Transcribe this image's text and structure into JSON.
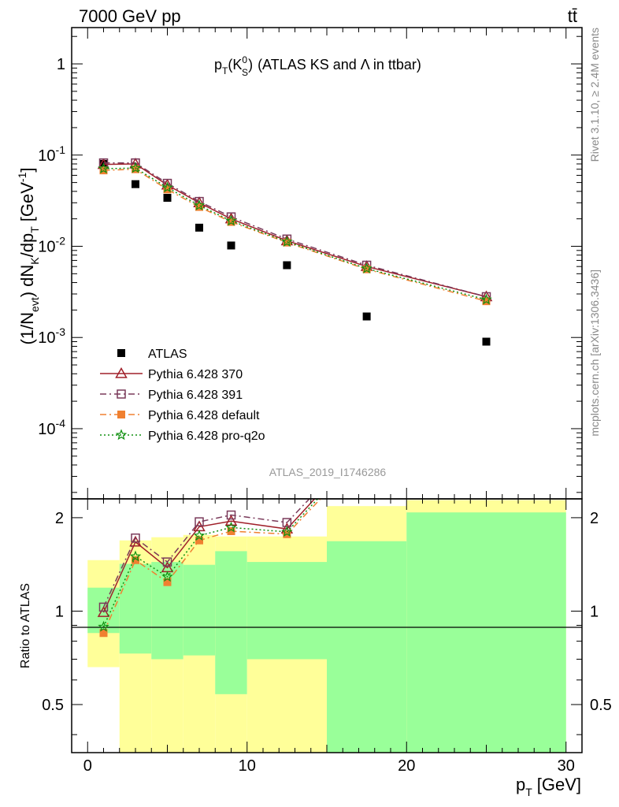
{
  "header": {
    "left": "7000 GeV pp",
    "right": "tt̄"
  },
  "side_labels": {
    "rivet": "Rivet 3.1.10, ≥ 2.4M events",
    "mcplots": "mcplots.cern.ch [arXiv:1306.3436]"
  },
  "chart_data": [
    {
      "type": "scatter",
      "panel": "main",
      "title_parts": {
        "base": "p",
        "sub": "T",
        "paren_open": "(K",
        "sup": "0",
        "sub2": "S",
        "paren_close": ")",
        "rest": "(ATLAS KS and Λ in ttbar)"
      },
      "ylabel_parts": {
        "a": "(1/N",
        "a_sub": "evt",
        "b": ") dN",
        "b_sub": "K",
        "c": "/dp",
        "c_sub": "T",
        "d": "[GeV",
        "d_sup": "-1",
        "e": "]"
      },
      "yscale": "log",
      "ylim": [
        1.7e-05,
        2.5
      ],
      "xlim": [
        -1,
        31
      ],
      "ytick_labels": [
        {
          "value": 1,
          "base": "1",
          "exp": ""
        },
        {
          "value": 0.1,
          "base": "10",
          "exp": "-1"
        },
        {
          "value": 0.01,
          "base": "10",
          "exp": "-2"
        },
        {
          "value": 0.001,
          "base": "10",
          "exp": "-3"
        },
        {
          "value": 0.0001,
          "base": "10",
          "exp": "-4"
        }
      ],
      "watermark": "ATLAS_2019_I1746286",
      "legend_position": "bottom-left",
      "series": [
        {
          "name": "ATLAS",
          "color": "#000000",
          "marker": "square",
          "line": "none",
          "x": [
            1,
            3,
            5,
            7,
            9,
            12.5,
            17.5,
            25
          ],
          "y": [
            0.08,
            0.048,
            0.034,
            0.016,
            0.0102,
            0.0062,
            0.0017,
            0.0009
          ]
        },
        {
          "name": "Pythia 6.428 370",
          "color": "#a0202a",
          "marker": "triangle-open",
          "line": "solid",
          "x": [
            1,
            3,
            5,
            7,
            9,
            12.5,
            17.5,
            25
          ],
          "y": [
            0.079,
            0.08,
            0.047,
            0.03,
            0.02,
            0.0115,
            0.006,
            0.0028
          ]
        },
        {
          "name": "Pythia 6.428 391",
          "color": "#7a3a5a",
          "marker": "square-open",
          "line": "dashdot",
          "x": [
            1,
            3,
            5,
            7,
            9,
            12.5,
            17.5,
            25
          ],
          "y": [
            0.082,
            0.082,
            0.049,
            0.031,
            0.021,
            0.012,
            0.0062,
            0.0028
          ]
        },
        {
          "name": "Pythia 6.428 default",
          "color": "#f08030",
          "marker": "square",
          "line": "dashdot",
          "x": [
            1,
            3,
            5,
            7,
            9,
            12.5,
            17.5,
            25
          ],
          "y": [
            0.068,
            0.07,
            0.042,
            0.027,
            0.0185,
            0.011,
            0.0056,
            0.0025
          ]
        },
        {
          "name": "Pythia 6.428 pro-q2o",
          "color": "#109010",
          "marker": "star-open",
          "line": "dotted",
          "x": [
            1,
            3,
            5,
            7,
            9,
            12.5,
            17.5,
            25
          ],
          "y": [
            0.071,
            0.072,
            0.044,
            0.028,
            0.019,
            0.0112,
            0.0057,
            0.0026
          ]
        }
      ]
    },
    {
      "type": "line",
      "panel": "ratio",
      "ylabel": "Ratio to ATLAS",
      "xlabel_parts": {
        "base": "p",
        "sub": "T",
        "rest": "[GeV]"
      },
      "yscale": "log",
      "ylim": [
        0.35,
        2.3
      ],
      "xlim": [
        -1,
        31
      ],
      "xticks": [
        0,
        10,
        20,
        30
      ],
      "yticks": [
        0.5,
        1,
        2
      ],
      "ytick_labels": [
        "0.5",
        "1",
        "2"
      ],
      "bands": {
        "bin_edges": [
          0,
          2,
          4,
          6,
          8,
          10,
          15,
          20,
          30
        ],
        "yellow_low": [
          0.66,
          0.35,
          0.35,
          0.35,
          0.35,
          0.35,
          0.35,
          0.35
        ],
        "yellow_high": [
          1.46,
          1.69,
          1.73,
          1.76,
          1.74,
          1.74,
          2.18,
          2.28
        ],
        "green_low": [
          0.85,
          0.73,
          0.7,
          0.72,
          0.54,
          0.7,
          0.35,
          0.35
        ],
        "green_high": [
          1.19,
          1.42,
          1.44,
          1.41,
          1.56,
          1.44,
          1.68,
          2.08
        ]
      },
      "series": [
        {
          "name": "Pythia 6.428 370",
          "color": "#a0202a",
          "marker": "triangle-open",
          "line": "solid",
          "x": [
            1,
            3,
            5,
            7,
            9,
            12.5,
            17.5
          ],
          "y": [
            0.99,
            1.67,
            1.38,
            1.87,
            1.95,
            1.84,
            3.5
          ]
        },
        {
          "name": "Pythia 6.428 391",
          "color": "#7a3a5a",
          "marker": "square-open",
          "line": "dashdot",
          "x": [
            1,
            3,
            5,
            7,
            9,
            12.5,
            17.5
          ],
          "y": [
            1.03,
            1.72,
            1.44,
            1.94,
            2.04,
            1.93,
            3.6
          ]
        },
        {
          "name": "Pythia 6.428 default",
          "color": "#f08030",
          "marker": "square",
          "line": "dashdot",
          "x": [
            1,
            3,
            5,
            7,
            9,
            12.5,
            17.5
          ],
          "y": [
            0.85,
            1.46,
            1.24,
            1.69,
            1.81,
            1.77,
            3.3
          ]
        },
        {
          "name": "Pythia 6.428 pro-q2o",
          "color": "#109010",
          "marker": "star-open",
          "line": "dotted",
          "x": [
            1,
            3,
            5,
            7,
            9,
            12.5,
            17.5
          ],
          "y": [
            0.89,
            1.5,
            1.29,
            1.75,
            1.86,
            1.8,
            3.4
          ]
        }
      ]
    }
  ]
}
